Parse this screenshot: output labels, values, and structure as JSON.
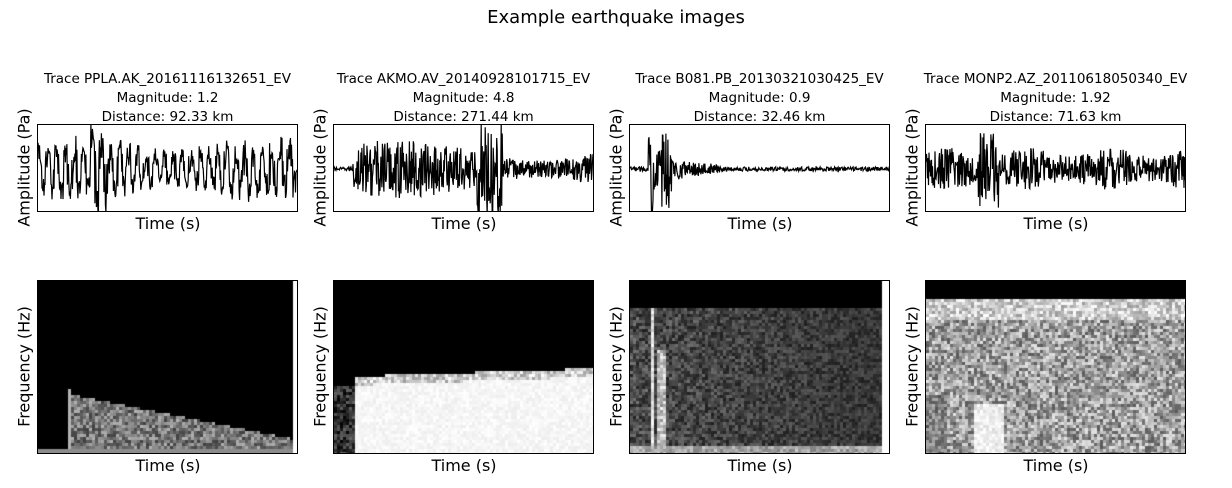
{
  "title": "Example earthquake images",
  "chart_data": [
    {
      "type": "line",
      "title": "Trace PPLA.AK_20161116132651_EV\nMagnitude: 1.2\nDistance: 92.33 km",
      "trace": "Trace PPLA.AK_20161116132651_EV",
      "magnitude": "Magnitude: 1.2",
      "distance": "Distance: 92.33 km",
      "xlabel": "Time (s)",
      "ylabel": "Amplitude (Pa)",
      "spectrogram": {
        "xlabel": "Time (s)",
        "ylabel": "Frequency (Hz)"
      }
    },
    {
      "type": "line",
      "title": "Trace AKMO.AV_20140928101715_EV\nMagnitude: 4.8\nDistance: 271.44 km",
      "trace": "Trace AKMO.AV_20140928101715_EV",
      "magnitude": "Magnitude: 4.8",
      "distance": "Distance: 271.44 km",
      "xlabel": "Time (s)",
      "ylabel": "Amplitude (Pa)",
      "spectrogram": {
        "xlabel": "Time (s)",
        "ylabel": "Frequency (Hz)"
      }
    },
    {
      "type": "line",
      "title": "Trace B081.PB_20130321030425_EV\nMagnitude: 0.9\nDistance: 32.46 km",
      "trace": "Trace B081.PB_20130321030425_EV",
      "magnitude": "Magnitude: 0.9",
      "distance": "Distance: 32.46 km",
      "xlabel": "Time (s)",
      "ylabel": "Amplitude (Pa)",
      "spectrogram": {
        "xlabel": "Time (s)",
        "ylabel": "Frequency (Hz)"
      }
    },
    {
      "type": "line",
      "title": "Trace MONP2.AZ_20110618050340_EV\nMagnitude: 1.92\nDistance: 71.63 km",
      "trace": "Trace MONP2.AZ_20110618050340_EV",
      "magnitude": "Magnitude: 1.92",
      "distance": "Distance: 71.63 km",
      "xlabel": "Time (s)",
      "ylabel": "Amplitude (Pa)",
      "spectrogram": {
        "xlabel": "Time (s)",
        "ylabel": "Frequency (Hz)"
      }
    }
  ]
}
